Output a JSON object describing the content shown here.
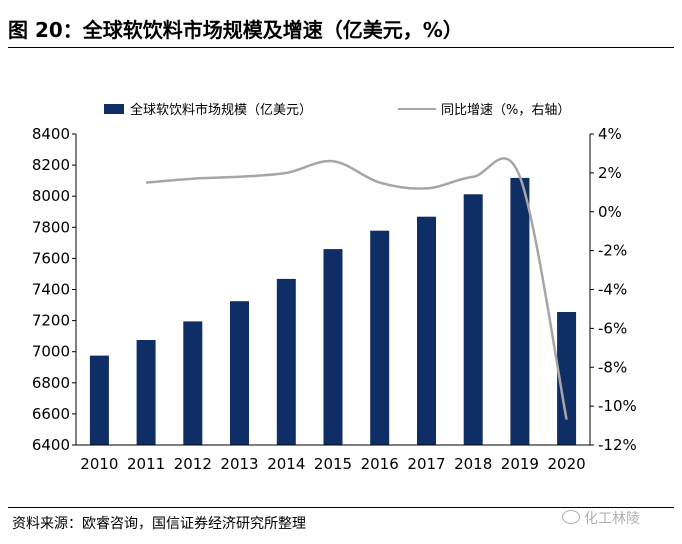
{
  "figure": {
    "title": "图 20：全球软饮料市场规模及增速（亿美元，%）",
    "source": "资料来源：欧睿咨询，国信证券经济研究所整理",
    "watermark": "化工林陵"
  },
  "colors": {
    "bar": "#0f2e66",
    "line": "#a6a6a6"
  },
  "chart_data": {
    "type": "bar+line",
    "categories": [
      "2010",
      "2011",
      "2012",
      "2013",
      "2014",
      "2015",
      "2016",
      "2017",
      "2018",
      "2019",
      "2020"
    ],
    "series": [
      {
        "name": "全球软饮料市场规模（亿美元）",
        "type": "bar",
        "axis": "left",
        "values": [
          6975,
          7075,
          7195,
          7325,
          7468,
          7660,
          7778,
          7868,
          8012,
          8118,
          7255
        ]
      },
      {
        "name": "同比增速（%，右轴）",
        "type": "line",
        "axis": "right",
        "values": [
          null,
          1.5,
          1.7,
          1.8,
          2.0,
          2.6,
          1.5,
          1.2,
          1.8,
          1.8,
          -10.7
        ]
      }
    ],
    "left_axis": {
      "ylim": [
        6400,
        8400
      ],
      "ticks": [
        "6400",
        "6600",
        "6800",
        "7000",
        "7200",
        "7400",
        "7600",
        "7800",
        "8000",
        "8200",
        "8400"
      ]
    },
    "right_axis": {
      "ylim": [
        -12,
        4
      ],
      "ticks": [
        "-12%",
        "-10%",
        "-8%",
        "-6%",
        "-4%",
        "-2%",
        "0%",
        "2%",
        "4%"
      ]
    },
    "legend_position": "top",
    "grid": false
  }
}
